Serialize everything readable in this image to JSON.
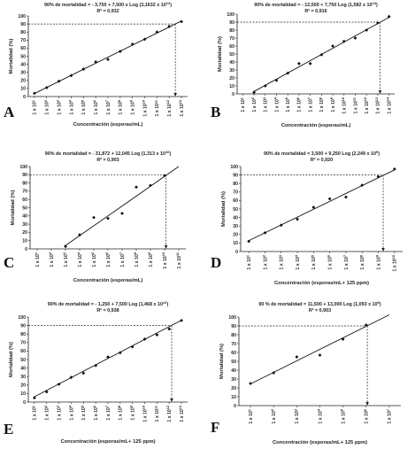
{
  "chart_data": [
    {
      "panel_letter": "A",
      "type": "scatter",
      "title": "90% de mortalidad = - 3,750 + 7,500 x Log (3,1632 x 10",
      "title_exp": "12",
      "title_close": ")",
      "r2": "R² = 0,932",
      "ylabel": "Mortalidad (%)",
      "xlabel": "Concentración (esporas/mL)",
      "ylim": [
        0,
        100
      ],
      "yticks": [
        "0",
        "10",
        "20",
        "30",
        "40",
        "50",
        "60",
        "70",
        "80",
        "90",
        "100"
      ],
      "x_exponents": [
        "1",
        "2",
        "3",
        "4",
        "5",
        "6",
        "7",
        "8",
        "9",
        "10",
        "11",
        "12",
        "13"
      ],
      "x_tick_prefix": "1 x 10",
      "points": [
        [
          1,
          4
        ],
        [
          2,
          11
        ],
        [
          3,
          19
        ],
        [
          4,
          26
        ],
        [
          5,
          34
        ],
        [
          6,
          43
        ],
        [
          7,
          46
        ],
        [
          8,
          56
        ],
        [
          9,
          65
        ],
        [
          10,
          71
        ],
        [
          11,
          80
        ],
        [
          12,
          87
        ],
        [
          13,
          93
        ]
      ],
      "trendline": [
        [
          1,
          3.75
        ],
        [
          13,
          93.75
        ]
      ],
      "reference_line": {
        "y": 90,
        "x": 12.5
      },
      "grid": false
    },
    {
      "panel_letter": "B",
      "type": "scatter",
      "title": "90% de mortalidad = - 12,500 + 7,750 Log (1,582 x 10",
      "title_exp": "13",
      "title_close": ")",
      "r2": "R² = 0,916",
      "ylabel": "Mortalidad (%)",
      "xlabel": "Concentración (esporas/mL)",
      "ylim": [
        0,
        100
      ],
      "yticks": [
        "0",
        "10",
        "20",
        "30",
        "40",
        "50",
        "60",
        "70",
        "80",
        "90",
        "100"
      ],
      "x_exponents": [
        "1",
        "2",
        "3",
        "4",
        "5",
        "6",
        "7",
        "8",
        "9",
        "10",
        "11",
        "12",
        "13",
        "14"
      ],
      "x_tick_prefix": "1 x 10",
      "points": [
        [
          2,
          2
        ],
        [
          3,
          10
        ],
        [
          4,
          17
        ],
        [
          5,
          26
        ],
        [
          6,
          38
        ],
        [
          7,
          38
        ],
        [
          8,
          49
        ],
        [
          9,
          60
        ],
        [
          10,
          66
        ],
        [
          11,
          70
        ],
        [
          12,
          80
        ],
        [
          13,
          89
        ],
        [
          14,
          97
        ]
      ],
      "trendline": [
        [
          2,
          3
        ],
        [
          14,
          96
        ]
      ],
      "reference_line": {
        "y": 90,
        "x": 13.2
      },
      "grid": false
    },
    {
      "panel_letter": "C",
      "type": "scatter",
      "title": "90% de mortalidad = - 31,872 + 12,045 Log (1,313 x 10",
      "title_exp": "10",
      "title_close": ")",
      "r2": "R² = 0,903",
      "ylabel": "Mortalidad (%)",
      "xlabel": "Concentración (esporas/mL)",
      "ylim": [
        0,
        100
      ],
      "yticks": [
        "0",
        "10",
        "20",
        "30",
        "40",
        "50",
        "60",
        "70",
        "80",
        "90",
        "100"
      ],
      "x_exponents": [
        "1",
        "2",
        "3",
        "4",
        "5",
        "6",
        "7",
        "8",
        "9",
        "10",
        "11"
      ],
      "x_tick_prefix": "1 x 10",
      "points": [
        [
          3,
          3
        ],
        [
          4,
          17
        ],
        [
          5,
          38
        ],
        [
          6,
          37
        ],
        [
          7,
          43
        ],
        [
          8,
          75
        ],
        [
          9,
          77
        ],
        [
          10,
          89
        ]
      ],
      "trendline": [
        [
          3,
          4
        ],
        [
          11,
          100
        ]
      ],
      "reference_line": {
        "y": 90,
        "x": 10.1
      },
      "grid": false
    },
    {
      "panel_letter": "D",
      "type": "scatter",
      "title": "90% de mortalidad = 3,500 + 9,250 Log (2,249 x 10",
      "title_exp": "9",
      "title_close": ")",
      "r2": "R² = 0,920",
      "ylabel": "Mortalidad (%)",
      "xlabel": "Concentración (esporas/mL+ 125 ppm)",
      "ylim": [
        0,
        100
      ],
      "yticks": [
        "0",
        "10",
        "20",
        "30",
        "40",
        "50",
        "60",
        "70",
        "80",
        "90",
        "100"
      ],
      "x_exponents": [
        "1",
        "2",
        "3",
        "4",
        "5",
        "6",
        "7",
        "8",
        "9",
        "10"
      ],
      "x_tick_prefix": "1 x 10",
      "points": [
        [
          1,
          12
        ],
        [
          2,
          22
        ],
        [
          3,
          31
        ],
        [
          4,
          38
        ],
        [
          5,
          52
        ],
        [
          6,
          62
        ],
        [
          7,
          64
        ],
        [
          8,
          78
        ],
        [
          9,
          88
        ],
        [
          10,
          97
        ]
      ],
      "trendline": [
        [
          1,
          12.75
        ],
        [
          10,
          96
        ]
      ],
      "reference_line": {
        "y": 90,
        "x": 9.3
      },
      "grid": false
    },
    {
      "panel_letter": "E",
      "type": "scatter",
      "title": "90% de mortalidad = - 1,250 + 7,500 Log (1,468 x 10",
      "title_exp": "12",
      "title_close": ")",
      "r2": "R² = 0,938",
      "ylabel": "Mortalidad (%)",
      "xlabel": "Concentración (esporas/mL+ 125 ppm)",
      "ylim": [
        0,
        100
      ],
      "yticks": [
        "0",
        "10",
        "20",
        "30",
        "40",
        "50",
        "60",
        "70",
        "80",
        "90",
        "100"
      ],
      "x_exponents": [
        "1",
        "2",
        "3",
        "4",
        "5",
        "6",
        "7",
        "8",
        "9",
        "10",
        "11",
        "12",
        "13"
      ],
      "x_tick_prefix": "1 x 10",
      "points": [
        [
          1,
          5
        ],
        [
          2,
          12
        ],
        [
          3,
          21
        ],
        [
          4,
          29
        ],
        [
          5,
          34
        ],
        [
          6,
          43
        ],
        [
          7,
          53
        ],
        [
          8,
          58
        ],
        [
          9,
          65
        ],
        [
          10,
          74
        ],
        [
          11,
          79
        ],
        [
          12,
          86
        ],
        [
          13,
          96
        ]
      ],
      "trendline": [
        [
          1,
          6.25
        ],
        [
          13,
          96.25
        ]
      ],
      "reference_line": {
        "y": 90,
        "x": 12.2
      },
      "grid": false
    },
    {
      "panel_letter": "F",
      "type": "scatter",
      "title": "90 % de mortalidad = 11,500 + 13,000 Log (1,093 x 10",
      "title_exp": "6",
      "title_close": ")",
      "r2": "R² = 0,903",
      "ylabel": "Mortalidad (%)",
      "xlabel": "Concentración (esporas/mL+ 125 ppm)",
      "ylim": [
        0,
        100
      ],
      "yticks": [
        "0",
        "10",
        "20",
        "30",
        "40",
        "50",
        "60",
        "70",
        "80",
        "90",
        "100"
      ],
      "x_exponents": [
        "1",
        "2",
        "3",
        "4",
        "5",
        "6",
        "7"
      ],
      "x_tick_prefix": "1 x 10",
      "points": [
        [
          1,
          25
        ],
        [
          2,
          37
        ],
        [
          3,
          55
        ],
        [
          4,
          57
        ],
        [
          5,
          75
        ],
        [
          6,
          91
        ]
      ],
      "trendline": [
        [
          1,
          24.5
        ],
        [
          7,
          102.5
        ]
      ],
      "reference_line": {
        "y": 90,
        "x": 6.05
      },
      "grid": false
    }
  ]
}
